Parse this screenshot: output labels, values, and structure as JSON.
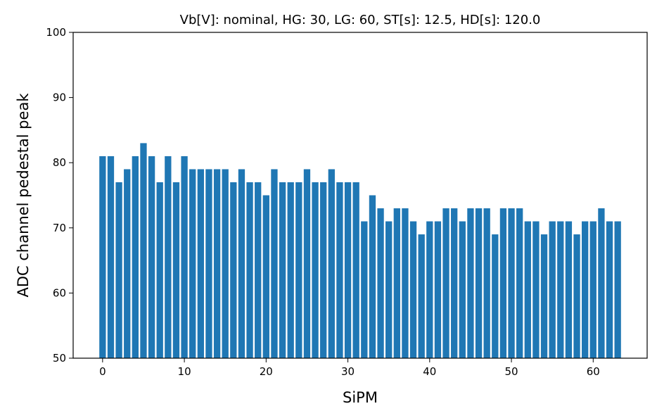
{
  "chart_data": {
    "type": "bar",
    "title": "Vb[V]: nominal, HG: 30, LG: 60, ST[s]: 12.5, HD[s]: 120.0",
    "xlabel": "SiPM",
    "ylabel": "ADC channel pedestal peak",
    "xlim": [
      -3.6,
      66.6
    ],
    "ylim": [
      50,
      100
    ],
    "xticks": [
      0,
      10,
      20,
      30,
      40,
      50,
      60
    ],
    "yticks": [
      50,
      60,
      70,
      80,
      90,
      100
    ],
    "grid": false,
    "bar_color": "#1f77b4",
    "x": [
      0,
      1,
      2,
      3,
      4,
      5,
      6,
      7,
      8,
      9,
      10,
      11,
      12,
      13,
      14,
      15,
      16,
      17,
      18,
      19,
      20,
      21,
      22,
      23,
      24,
      25,
      26,
      27,
      28,
      29,
      30,
      31,
      32,
      33,
      34,
      35,
      36,
      37,
      38,
      39,
      40,
      41,
      42,
      43,
      44,
      45,
      46,
      47,
      48,
      49,
      50,
      51,
      52,
      53,
      54,
      55,
      56,
      57,
      58,
      59,
      60,
      61,
      62,
      63
    ],
    "values": [
      81,
      81,
      77,
      79,
      81,
      83,
      81,
      77,
      81,
      77,
      81,
      79,
      79,
      79,
      79,
      79,
      77,
      79,
      77,
      77,
      75,
      79,
      77,
      77,
      77,
      79,
      77,
      77,
      79,
      77,
      77,
      77,
      71,
      75,
      73,
      71,
      73,
      73,
      71,
      69,
      71,
      71,
      73,
      73,
      71,
      73,
      73,
      73,
      69,
      73,
      73,
      73,
      71,
      71,
      69,
      71,
      71,
      71,
      69,
      71,
      71,
      73,
      71,
      71
    ]
  }
}
